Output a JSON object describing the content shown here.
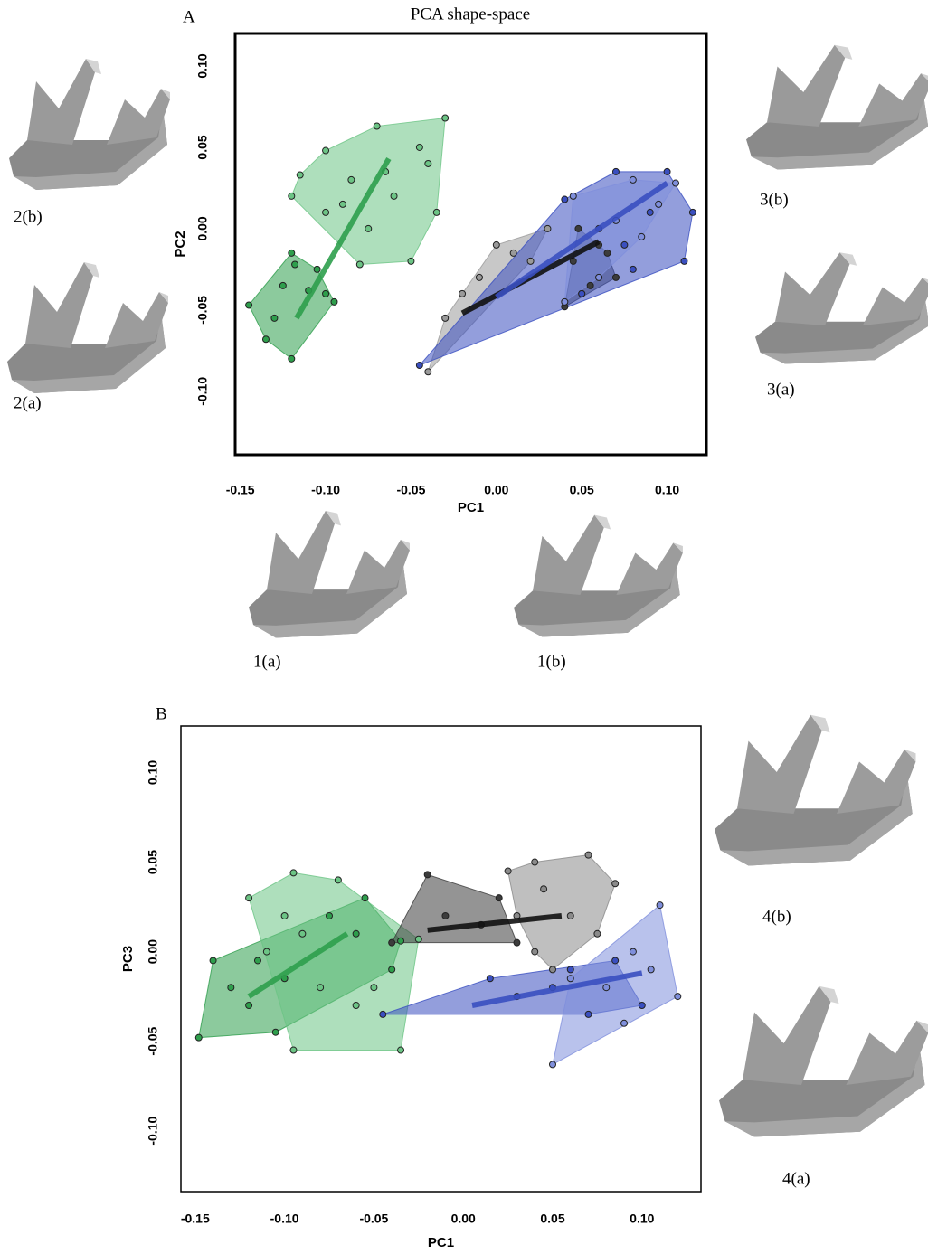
{
  "chart_data": [
    {
      "type": "scatter",
      "panel": "A",
      "title": "PCA shape-space",
      "xlabel": "PC1",
      "ylabel": "PC2",
      "xlim": [
        -0.153,
        0.123
      ],
      "ylim": [
        -0.139,
        0.12
      ],
      "xticks": [
        -0.15,
        {
          "value": -0.1,
          "label": "-0.10"
        },
        -0.05,
        {
          "value": 0,
          "label": "0.00"
        },
        0.05,
        {
          "value": 0.1,
          "label": "0.10"
        }
      ],
      "yticks": [
        {
          "value": -0.1,
          "label": "-0.10"
        },
        -0.05,
        {
          "value": 0,
          "label": "0.00"
        },
        0.05,
        {
          "value": 0.1,
          "label": "0.10"
        }
      ],
      "annotations": [
        "2(b)",
        "2(a)",
        "3(b)",
        "3(a)",
        "1(a)",
        "1(b)"
      ],
      "series": [
        {
          "color": "#2e9e4c",
          "x": [
            -0.145,
            -0.135,
            -0.12,
            -0.12,
            -0.118,
            -0.11,
            -0.13,
            -0.1,
            -0.095,
            -0.105,
            -0.125
          ],
          "values": [
            -0.047,
            -0.068,
            -0.08,
            -0.015,
            -0.022,
            -0.038,
            -0.055,
            -0.04,
            -0.045,
            -0.025,
            -0.035
          ],
          "trend": {
            "x": [
              -0.117,
              -0.063
            ],
            "values": [
              -0.055,
              0.043
            ]
          }
        },
        {
          "color": "#6cc485",
          "x": [
            -0.115,
            -0.12,
            -0.1,
            -0.07,
            -0.03,
            -0.04,
            -0.035,
            -0.05,
            -0.08,
            -0.1,
            -0.085,
            -0.06,
            -0.075,
            -0.09,
            -0.045,
            -0.065
          ],
          "values": [
            0.033,
            0.02,
            0.048,
            0.063,
            0.068,
            0.04,
            0.01,
            -0.02,
            -0.022,
            0.01,
            0.03,
            0.02,
            0.0,
            0.015,
            0.05,
            0.035
          ]
        },
        {
          "color": "#9a9a9a",
          "x": [
            -0.02,
            -0.01,
            -0.04,
            0.0,
            0.03,
            0.02,
            -0.03,
            0.01
          ],
          "values": [
            -0.04,
            -0.03,
            -0.088,
            -0.01,
            0.0,
            -0.02,
            -0.055,
            -0.015
          ]
        },
        {
          "color": "#3c3c3c",
          "x": [
            0.04,
            0.045,
            0.06,
            0.07,
            0.055,
            0.05,
            0.065,
            0.048
          ],
          "values": [
            -0.048,
            -0.02,
            -0.01,
            -0.03,
            -0.035,
            -0.04,
            -0.015,
            0.0
          ],
          "trend": {
            "x": [
              -0.02,
              0.06
            ],
            "values": [
              -0.052,
              -0.008
            ]
          }
        },
        {
          "color": "#3a4fc0",
          "x": [
            -0.045,
            0.04,
            0.07,
            0.1,
            0.115,
            0.11,
            0.08,
            0.05,
            0.06,
            0.09,
            0.075
          ],
          "values": [
            -0.084,
            0.018,
            0.035,
            0.035,
            0.01,
            -0.02,
            -0.025,
            -0.04,
            0.0,
            0.01,
            -0.01
          ],
          "trend": {
            "x": [
              0.0,
              0.1
            ],
            "values": [
              -0.042,
              0.028
            ]
          }
        },
        {
          "color": "#7f8fdc",
          "x": [
            0.045,
            0.08,
            0.105,
            0.095,
            0.06,
            0.04,
            0.07,
            0.085
          ],
          "values": [
            0.02,
            0.03,
            0.028,
            0.015,
            -0.03,
            -0.045,
            0.005,
            -0.005
          ]
        }
      ]
    },
    {
      "type": "scatter",
      "panel": "B",
      "xlabel": "PC1",
      "ylabel": "PC3",
      "xlim": [
        -0.158,
        0.133
      ],
      "ylim": [
        -0.134,
        0.126
      ],
      "xticks": [
        -0.15,
        {
          "value": -0.1,
          "label": "-0.10"
        },
        -0.05,
        {
          "value": 0,
          "label": "0.00"
        },
        0.05,
        {
          "value": 0.1,
          "label": "0.10"
        }
      ],
      "yticks": [
        {
          "value": -0.1,
          "label": "-0.10"
        },
        -0.05,
        {
          "value": 0,
          "label": "0.00"
        },
        0.05,
        {
          "value": 0.1,
          "label": "0.10"
        }
      ],
      "annotations": [
        "4(b)",
        "4(a)"
      ],
      "series": [
        {
          "color": "#2e9e4c",
          "x": [
            -0.148,
            -0.14,
            -0.12,
            -0.105,
            -0.1,
            -0.115,
            -0.13,
            -0.06,
            -0.055,
            -0.035,
            -0.04,
            -0.075
          ],
          "values": [
            -0.048,
            -0.005,
            -0.03,
            -0.045,
            -0.015,
            -0.005,
            -0.02,
            0.01,
            0.03,
            0.006,
            -0.01,
            0.02
          ],
          "trend": {
            "x": [
              -0.12,
              -0.065
            ],
            "values": [
              -0.025,
              0.01
            ]
          }
        },
        {
          "color": "#6cc485",
          "x": [
            -0.12,
            -0.095,
            -0.07,
            -0.025,
            -0.035,
            -0.095,
            -0.11,
            -0.08,
            -0.06,
            -0.09,
            -0.05,
            -0.1
          ],
          "values": [
            0.03,
            0.044,
            0.04,
            0.007,
            -0.055,
            -0.055,
            0.0,
            -0.02,
            -0.03,
            0.01,
            -0.02,
            0.02
          ]
        },
        {
          "color": "#3c3c3c",
          "x": [
            -0.04,
            -0.02,
            0.02,
            0.03,
            -0.01,
            0.01
          ],
          "values": [
            0.005,
            0.043,
            0.03,
            0.005,
            0.02,
            0.015
          ],
          "trend": {
            "x": [
              -0.02,
              0.055
            ],
            "values": [
              0.012,
              0.02
            ]
          }
        },
        {
          "color": "#8a8a8a",
          "x": [
            0.025,
            0.04,
            0.07,
            0.085,
            0.075,
            0.05,
            0.04,
            0.03,
            0.06,
            0.045
          ],
          "values": [
            0.045,
            0.05,
            0.054,
            0.038,
            0.01,
            -0.01,
            0.0,
            0.02,
            0.02,
            0.035
          ]
        },
        {
          "color": "#3a4fc0",
          "x": [
            -0.045,
            0.015,
            0.06,
            0.085,
            0.1,
            0.07,
            0.03,
            0.05
          ],
          "values": [
            -0.035,
            -0.015,
            -0.01,
            -0.005,
            -0.03,
            -0.035,
            -0.025,
            -0.02
          ],
          "trend": {
            "x": [
              0.005,
              0.1
            ],
            "values": [
              -0.03,
              -0.012
            ]
          }
        },
        {
          "color": "#7f8fdc",
          "x": [
            0.05,
            0.06,
            0.11,
            0.12,
            0.09,
            0.105,
            0.08,
            0.095
          ],
          "values": [
            -0.063,
            -0.015,
            0.026,
            -0.025,
            -0.04,
            -0.01,
            -0.02,
            0.0
          ]
        }
      ]
    }
  ]
}
